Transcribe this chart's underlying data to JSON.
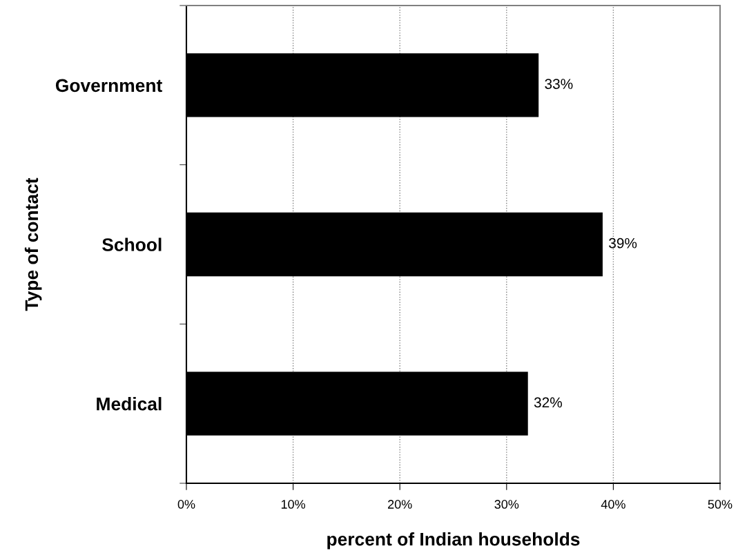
{
  "chart_data": {
    "type": "bar",
    "orientation": "horizontal",
    "categories": [
      "Government",
      "School",
      "Medical"
    ],
    "values": [
      33,
      39,
      32
    ],
    "color": "#000000",
    "data_labels": true,
    "value_labels": [
      "33%",
      "39%",
      "32%"
    ],
    "xlim": [
      0,
      50
    ],
    "xticks": [
      {
        "value": 0,
        "label": "0%"
      },
      {
        "value": 10,
        "label": "10%"
      },
      {
        "value": 20,
        "label": "20%"
      },
      {
        "value": 30,
        "label": "30%"
      },
      {
        "value": 40,
        "label": "40%"
      },
      {
        "value": 50,
        "label": "50%"
      }
    ],
    "xlabel": "percent of Indian households",
    "ylabel": "Type of contact",
    "grid": "x",
    "legend": false
  }
}
